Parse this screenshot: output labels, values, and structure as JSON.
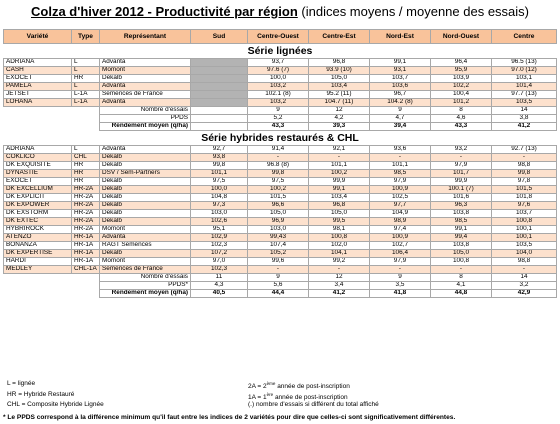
{
  "title": {
    "main": "Colza d'hiver 2012 - Productivité par région",
    "sub": " (indices moyens / moyenne des essais)"
  },
  "headers": [
    "Variété",
    "Type",
    "Représentant",
    "Sud",
    "Centre-Ouest",
    "Centre-Est",
    "Nord-Est",
    "Nord-Ouest",
    "Centre"
  ],
  "section1_title": "Série lignées",
  "lignees": [
    {
      "variete": "ADRIANA",
      "type": "L",
      "rep": "Advanta",
      "sud": "",
      "co": "93,7",
      "ce": "96,8",
      "ne": "99,1",
      "no": "96,4",
      "centre": "96.5 (13)"
    },
    {
      "variete": "CASH",
      "type": "L",
      "rep": "Momont",
      "sud": "",
      "co": "97.6 (7)",
      "ce": "93.9 (10)",
      "ne": "93,1",
      "no": "95,9",
      "centre": "97.0 (12)"
    },
    {
      "variete": "EXOCET",
      "type": "HR",
      "rep": "Dekalb",
      "sud": "",
      "co": "100,0",
      "ce": "105,0",
      "ne": "103,7",
      "no": "103,9",
      "centre": "103,1"
    },
    {
      "variete": "PAMELA",
      "type": "L",
      "rep": "Advanta",
      "sud": "",
      "co": "103,2",
      "ce": "103,4",
      "ne": "103,6",
      "no": "102,2",
      "centre": "101,4"
    },
    {
      "variete": "JETSET",
      "type": "L-1A",
      "rep": "Semences de France",
      "sud": "",
      "co": "102.1 (8)",
      "ce": "95.2 (11)",
      "ne": "96,7",
      "no": "100,4",
      "centre": "97.7 (13)"
    },
    {
      "variete": "LOHANA",
      "type": "L-1A",
      "rep": "Advanta",
      "sud": "",
      "co": "103,2",
      "ce": "104.7 (11)",
      "ne": "104.2 (8)",
      "no": "101,2",
      "centre": "103,5"
    }
  ],
  "lignees_summary": [
    {
      "label": "Nombre d'essais",
      "sud": "",
      "co": "9",
      "ce": "12",
      "ne": "9",
      "no": "8",
      "centre": "14",
      "bold": false
    },
    {
      "label": "PPDS",
      "sud": "",
      "co": "5,2",
      "ce": "4,2",
      "ne": "4,7",
      "no": "4,6",
      "centre": "3,8",
      "bold": false
    },
    {
      "label": "Rendement moyen (q/ha)",
      "sud": "",
      "co": "43,3",
      "ce": "39,3",
      "ne": "39,4",
      "no": "43,3",
      "centre": "41,2",
      "bold": true
    }
  ],
  "section2_title": "Série hybrides restaurés & CHL",
  "hybrides": [
    {
      "variete": "ADRIANA",
      "type": "L",
      "rep": "Advanta",
      "sud": "92,7",
      "co": "91,4",
      "ce": "92,1",
      "ne": "93,6",
      "no": "93,2",
      "centre": "92.7 (13)"
    },
    {
      "variete": "COKLICO",
      "type": "CHL",
      "rep": "Dekalb",
      "sud": "93,8",
      "co": "-",
      "ce": "-",
      "ne": "-",
      "no": "-",
      "centre": "-"
    },
    {
      "variete": "DK EXQUISITE",
      "type": "HR",
      "rep": "Dekalb",
      "sud": "99,8",
      "co": "96.8 (8)",
      "ce": "101,1",
      "ne": "101,1",
      "no": "97,9",
      "centre": "98,8"
    },
    {
      "variete": "DYNASTIE",
      "type": "HR",
      "rep": "DSV / Sem-Partners",
      "sud": "101,1",
      "co": "99,8",
      "ce": "100,2",
      "ne": "98,5",
      "no": "101,7",
      "centre": "99,8"
    },
    {
      "variete": "EXOCET",
      "type": "HR",
      "rep": "Dekalb",
      "sud": "97,5",
      "co": "97,5",
      "ce": "99,9",
      "ne": "97,9",
      "no": "99,9",
      "centre": "97,8"
    },
    {
      "variete": "DK EXCELLIUM",
      "type": "HR-2A",
      "rep": "Dekalb",
      "sud": "100,0",
      "co": "100,2",
      "ce": "99,1",
      "ne": "100,9",
      "no": "100.1 (7)",
      "centre": "101,5"
    },
    {
      "variete": "DK EXPLICIT",
      "type": "HR-2A",
      "rep": "Dekalb",
      "sud": "104,8",
      "co": "101,5",
      "ce": "103,4",
      "ne": "102,5",
      "no": "101,6",
      "centre": "101,8"
    },
    {
      "variete": "DK EXPOWER",
      "type": "HR-2A",
      "rep": "Dekalb",
      "sud": "97,3",
      "co": "96,6",
      "ce": "96,8",
      "ne": "97,7",
      "no": "96,3",
      "centre": "97,6"
    },
    {
      "variete": "DK EXSTORM",
      "type": "HR-2A",
      "rep": "Dekalb",
      "sud": "103,0",
      "co": "105,0",
      "ce": "105,0",
      "ne": "104,9",
      "no": "103,8",
      "centre": "103,7"
    },
    {
      "variete": "DK EXTEC",
      "type": "HR-2A",
      "rep": "Dekalb",
      "sud": "102,6",
      "co": "96,9",
      "ce": "99,5",
      "ne": "98,9",
      "no": "98,5",
      "centre": "100,8"
    },
    {
      "variete": "HYBRIROCK",
      "type": "HR-2A",
      "rep": "Momont",
      "sud": "95,1",
      "co": "103,0",
      "ce": "98,1",
      "ne": "97,4",
      "no": "99,1",
      "centre": "100,1"
    },
    {
      "variete": "ATENZO",
      "type": "HR-1A",
      "rep": "Advanta",
      "sud": "102,9",
      "co": "99,43",
      "ce": "100,8",
      "ne": "100,9",
      "no": "99,4",
      "centre": "100,1"
    },
    {
      "variete": "BONANZA",
      "type": "HR-1A",
      "rep": "RAGT Semences",
      "sud": "102,3",
      "co": "107,4",
      "ce": "102,0",
      "ne": "102,7",
      "no": "103,8",
      "centre": "103,5"
    },
    {
      "variete": "DK EXPERTISE",
      "type": "HR-1A",
      "rep": "Dekalb",
      "sud": "107,2",
      "co": "105,2",
      "ce": "104,1",
      "ne": "106,4",
      "no": "105,0",
      "centre": "104,0"
    },
    {
      "variete": "HARDI",
      "type": "HR-1A",
      "rep": "Momont",
      "sud": "97,0",
      "co": "99,6",
      "ce": "99,2",
      "ne": "97,9",
      "no": "100,8",
      "centre": "98,8"
    },
    {
      "variete": "MEDLEY",
      "type": "CHL-1A",
      "rep": "Semences de France",
      "sud": "102,3",
      "co": "-",
      "ce": "-",
      "ne": "-",
      "no": "-",
      "centre": "-"
    }
  ],
  "hybrides_summary": [
    {
      "label": "Nombre d'essais",
      "sud": "11",
      "co": "9",
      "ce": "12",
      "ne": "9",
      "no": "8",
      "centre": "14",
      "bold": false
    },
    {
      "label": "PPDS*",
      "sud": "4,3",
      "co": "5,6",
      "ce": "3,4",
      "ne": "3,5",
      "no": "4,1",
      "centre": "3,2",
      "bold": false
    },
    {
      "label": "Rendement moyen (q/ha)",
      "sud": "40,5",
      "co": "44,4",
      "ce": "41,2",
      "ne": "41,8",
      "no": "44,8",
      "centre": "42,9",
      "bold": true
    }
  ],
  "legend": {
    "l": "L = lignée",
    "hr": "HR = Hybride Restauré",
    "chl": "CHL = Composite Hybride Lignée",
    "a2_prefix": "2A = 2",
    "a2_sup": "ème",
    "a2_suffix": " année de post-inscription",
    "a1_prefix": "1A = 1",
    "a1_sup": "ère",
    "a1_suffix": " année de post-inscription",
    "paren": "(.) nombre d'essais si différent du total affiché"
  },
  "footnote": "* Le PPDS correspond à la différence minimum qu'il faut entre les indices de 2 variétés pour dire que celles-ci sont significativement différentes."
}
